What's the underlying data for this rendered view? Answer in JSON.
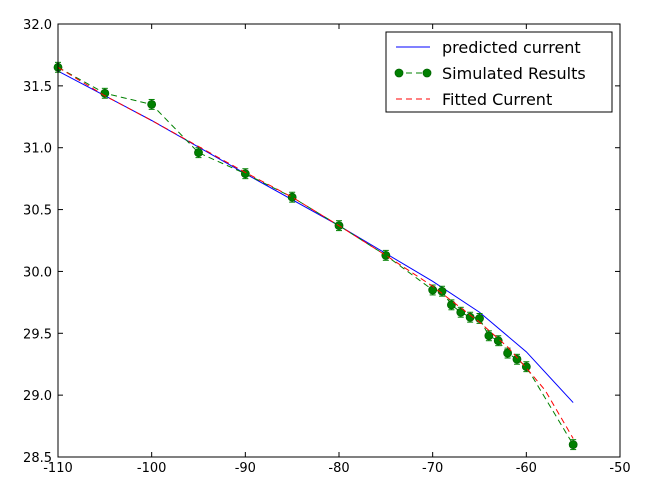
{
  "chart_data": {
    "type": "line",
    "title": "",
    "xlabel": "",
    "ylabel": "",
    "xlim": [
      -110,
      -50
    ],
    "ylim": [
      28.5,
      32.0
    ],
    "grid": false,
    "legend_position": "top-right",
    "x_ticks": [
      "-110",
      "-100",
      "-90",
      "-80",
      "-70",
      "-60",
      "-50"
    ],
    "y_ticks": [
      "28.5",
      "29.0",
      "29.5",
      "30.0",
      "30.5",
      "31.0",
      "31.5",
      "32.0"
    ],
    "x_tick_values": [
      -110,
      -100,
      -90,
      -80,
      -70,
      -60,
      -50
    ],
    "y_tick_values": [
      28.5,
      29.0,
      29.5,
      30.0,
      30.5,
      31.0,
      31.5,
      32.0
    ],
    "series": [
      {
        "name": "predicted current",
        "style": "solid",
        "color": "#0000ff",
        "x": [
          -110,
          -100,
          -90,
          -80,
          -70,
          -65,
          -60,
          -55
        ],
        "y": [
          31.62,
          31.22,
          30.79,
          30.37,
          29.92,
          29.67,
          29.35,
          28.94
        ]
      },
      {
        "name": "Simulated Results",
        "style": "dashed-markers",
        "color": "#008000",
        "marker_color": "#006400",
        "x": [
          -110,
          -105,
          -100,
          -95,
          -90,
          -85,
          -80,
          -75,
          -70,
          -69,
          -68,
          -67,
          -66,
          -65,
          -64,
          -63,
          -62,
          -61,
          -60,
          -55
        ],
        "y": [
          31.65,
          31.44,
          31.35,
          30.96,
          30.79,
          30.6,
          30.37,
          30.13,
          29.85,
          29.84,
          29.73,
          29.67,
          29.63,
          29.62,
          29.48,
          29.44,
          29.34,
          29.29,
          29.23,
          28.6
        ],
        "error": 0.04
      },
      {
        "name": "Fitted Current",
        "style": "dashed",
        "color": "#ff0000",
        "x": [
          -110,
          -105,
          -100,
          -95,
          -90,
          -85,
          -80,
          -75,
          -70,
          -65,
          -62,
          -60,
          -58,
          -55
        ],
        "y": [
          31.65,
          31.42,
          31.22,
          31.01,
          30.8,
          30.6,
          30.37,
          30.13,
          29.88,
          29.59,
          29.39,
          29.22,
          29.04,
          28.65
        ]
      }
    ]
  }
}
